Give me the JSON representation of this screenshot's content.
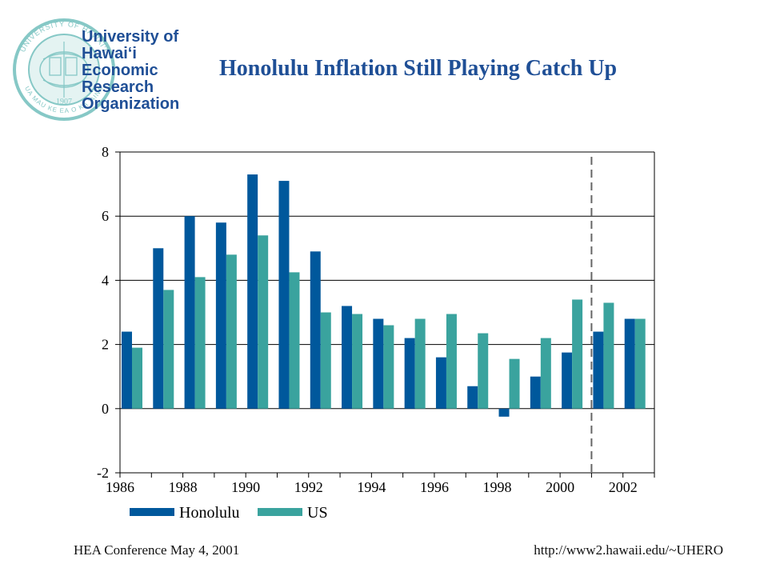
{
  "logo": {
    "lines": [
      "University of",
      "Hawai‘i",
      "Economic",
      "Research",
      "Organization"
    ],
    "seal_text": "UNIVERSITY OF HAWAI‘I",
    "seal_motto": "UA MAU KE EA O KA ʻAINA",
    "seal_year": "1907",
    "color": "#1f4f96",
    "seal_color": "#86c8c6"
  },
  "title": "Honolulu Inflation Still Playing Catch Up",
  "footer": {
    "left": "HEA Conference May 4, 2001",
    "right": "http://www2.hawaii.edu/~UHERO"
  },
  "chart_data": {
    "type": "bar",
    "categories": [
      "1986",
      "1987",
      "1988",
      "1989",
      "1990",
      "1991",
      "1992",
      "1993",
      "1994",
      "1995",
      "1996",
      "1997",
      "1998",
      "1999",
      "2000",
      "2001",
      "2002"
    ],
    "x_tick_labels": [
      "1986",
      "1988",
      "1990",
      "1992",
      "1994",
      "1996",
      "1998",
      "2000",
      "2002"
    ],
    "series": [
      {
        "name": "Honolulu",
        "color": "#00589c",
        "values": [
          2.4,
          5.0,
          6.0,
          5.8,
          7.3,
          7.1,
          4.9,
          3.2,
          2.8,
          2.2,
          1.6,
          0.7,
          -0.25,
          1.0,
          1.75,
          2.4,
          2.8
        ]
      },
      {
        "name": "US",
        "color": "#3aa39e",
        "values": [
          1.9,
          3.7,
          4.1,
          4.8,
          5.4,
          4.25,
          3.0,
          2.95,
          2.6,
          2.8,
          2.95,
          2.35,
          1.55,
          2.2,
          3.4,
          3.3,
          2.8
        ]
      }
    ],
    "y_ticks": [
      -2,
      0,
      2,
      4,
      6,
      8
    ],
    "ylim": [
      -2,
      8
    ],
    "grid": true,
    "forecast_divider_after": "2000",
    "legend": "bottom"
  }
}
